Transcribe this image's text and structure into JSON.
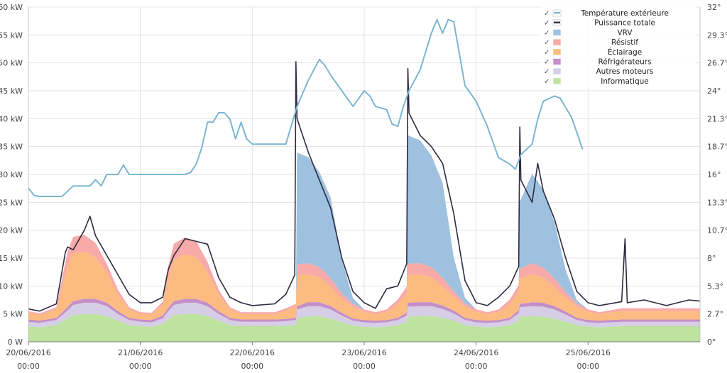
{
  "chart_data": {
    "type": "area",
    "title": "",
    "x_unit": "days since 20/06/2016 00:00",
    "xlim": [
      0,
      6
    ],
    "x_ticks": [
      {
        "value": 0,
        "date": "20/06/2016",
        "time": "00:00"
      },
      {
        "value": 1,
        "date": "21/06/2016",
        "time": "00:00"
      },
      {
        "value": 2,
        "date": "22/06/2016",
        "time": "00:00"
      },
      {
        "value": 3,
        "date": "23/06/2016",
        "time": "00:00"
      },
      {
        "value": 4,
        "date": "24/06/2016",
        "time": "00:00"
      },
      {
        "value": 5,
        "date": "25/06/2016",
        "time": "00:00"
      }
    ],
    "y_left": {
      "unit": "kW",
      "range": [
        0,
        60
      ],
      "ticks": [
        {
          "value": 0,
          "label": "0 W"
        },
        {
          "value": 5,
          "label": "5 kW"
        },
        {
          "value": 10,
          "label": "10 kW"
        },
        {
          "value": 15,
          "label": "15 kW"
        },
        {
          "value": 20,
          "label": "20 kW"
        },
        {
          "value": 25,
          "label": "25 kW"
        },
        {
          "value": 30,
          "label": "30 kW"
        },
        {
          "value": 35,
          "label": "35 kW"
        },
        {
          "value": 40,
          "label": "40 kW"
        },
        {
          "value": 45,
          "label": "45 kW"
        },
        {
          "value": 50,
          "label": "50 kW"
        },
        {
          "value": 55,
          "label": "55 kW"
        },
        {
          "value": 60,
          "label": "60 kW"
        }
      ]
    },
    "y_right": {
      "unit": "°",
      "range": [
        0,
        32
      ],
      "ticks": [
        {
          "value": 0,
          "label": "0°"
        },
        {
          "value": 2.67,
          "label": "2.7°"
        },
        {
          "value": 5.33,
          "label": "5.3°"
        },
        {
          "value": 8,
          "label": "8°"
        },
        {
          "value": 10.67,
          "label": "10.7°"
        },
        {
          "value": 13.33,
          "label": "13.3°"
        },
        {
          "value": 16,
          "label": "16°"
        },
        {
          "value": 18.67,
          "label": "18.7°"
        },
        {
          "value": 21.33,
          "label": "21.3°"
        },
        {
          "value": 24,
          "label": "24°"
        },
        {
          "value": 26.67,
          "label": "26.7°"
        },
        {
          "value": 29.33,
          "label": "29.3°"
        },
        {
          "value": 32,
          "label": "32°"
        }
      ]
    },
    "legend": {
      "placement": "top-right",
      "check": "✓",
      "entries": [
        {
          "name": "Température extérieure",
          "color": "#7cb5d2",
          "kind": "line"
        },
        {
          "name": "Puissance totale",
          "color": "#2e2a40",
          "kind": "line"
        },
        {
          "name": "VRV",
          "color": "#9ec1df",
          "kind": "area"
        },
        {
          "name": "Résistif",
          "color": "#f7aaa8",
          "kind": "area"
        },
        {
          "name": "Éclairage",
          "color": "#fcbb80",
          "kind": "area"
        },
        {
          "name": "Réfrigérateurs",
          "color": "#c48fc8",
          "kind": "area"
        },
        {
          "name": "Autres moteurs",
          "color": "#d6cde6",
          "kind": "area"
        },
        {
          "name": "Informatique",
          "color": "#bde39f",
          "kind": "area"
        }
      ]
    },
    "stack_x": [
      0,
      0.1,
      0.25,
      0.35,
      0.4,
      0.5,
      0.6,
      0.7,
      0.8,
      0.9,
      1.0,
      1.1,
      1.2,
      1.25,
      1.3,
      1.4,
      1.5,
      1.6,
      1.7,
      1.8,
      1.9,
      2.0,
      2.2,
      2.3,
      2.39,
      2.4,
      2.5,
      2.6,
      2.7,
      2.8,
      2.9,
      3.0,
      3.1,
      3.2,
      3.3,
      3.38,
      3.39,
      3.5,
      3.6,
      3.7,
      3.8,
      3.9,
      4.0,
      4.1,
      4.2,
      4.3,
      4.35,
      4.38,
      4.39,
      4.5,
      4.6,
      4.7,
      4.8,
      4.9,
      5.0,
      5.1,
      5.3,
      5.5,
      5.7,
      5.9,
      6.0
    ],
    "series": [
      {
        "name": "Informatique",
        "values": [
          2.8,
          2.6,
          3.0,
          4.2,
          4.8,
          5.0,
          5.0,
          4.6,
          3.8,
          3.0,
          2.8,
          2.7,
          3.2,
          4.0,
          4.8,
          5.0,
          5.0,
          4.6,
          3.8,
          3.0,
          2.8,
          2.8,
          2.8,
          2.9,
          3.0,
          4.2,
          4.6,
          4.6,
          4.2,
          3.5,
          2.9,
          2.7,
          2.6,
          2.7,
          3.0,
          3.5,
          4.5,
          4.6,
          4.6,
          4.3,
          3.8,
          3.0,
          2.7,
          2.6,
          2.7,
          3.0,
          3.5,
          3.8,
          4.5,
          4.6,
          4.5,
          4.2,
          3.6,
          3.0,
          2.7,
          2.6,
          2.8,
          2.8,
          2.8,
          2.8,
          2.8
        ]
      },
      {
        "name": "Autres moteurs",
        "values": [
          0.8,
          0.8,
          0.9,
          1.4,
          1.8,
          2.0,
          2.0,
          1.8,
          1.2,
          0.9,
          0.8,
          0.8,
          1.0,
          1.5,
          1.8,
          2.0,
          2.0,
          1.8,
          1.2,
          0.9,
          0.8,
          0.8,
          0.8,
          0.8,
          0.9,
          1.6,
          1.8,
          1.8,
          1.6,
          1.2,
          0.9,
          0.8,
          0.8,
          0.8,
          0.9,
          1.2,
          1.8,
          1.8,
          1.8,
          1.6,
          1.3,
          0.9,
          0.8,
          0.8,
          0.8,
          0.9,
          1.2,
          1.3,
          1.7,
          1.8,
          1.8,
          1.6,
          1.3,
          0.9,
          0.8,
          0.8,
          0.8,
          0.8,
          0.8,
          0.8,
          0.8
        ]
      },
      {
        "name": "Réfrigérateurs",
        "values": [
          0.4,
          0.4,
          0.4,
          0.6,
          0.7,
          0.7,
          0.7,
          0.6,
          0.5,
          0.4,
          0.4,
          0.4,
          0.5,
          0.6,
          0.7,
          0.7,
          0.7,
          0.6,
          0.5,
          0.4,
          0.4,
          0.4,
          0.4,
          0.4,
          0.4,
          0.6,
          0.7,
          0.7,
          0.6,
          0.5,
          0.4,
          0.4,
          0.4,
          0.4,
          0.4,
          0.5,
          0.7,
          0.7,
          0.7,
          0.6,
          0.5,
          0.4,
          0.4,
          0.4,
          0.4,
          0.4,
          0.5,
          0.5,
          0.6,
          0.7,
          0.7,
          0.6,
          0.5,
          0.4,
          0.4,
          0.4,
          0.4,
          0.4,
          0.4,
          0.4,
          0.4
        ]
      },
      {
        "name": "Éclairage",
        "values": [
          1.2,
          1.0,
          1.5,
          7.5,
          8.5,
          8.5,
          7.5,
          5.5,
          3.0,
          1.5,
          1.0,
          1.0,
          2.0,
          5.5,
          7.5,
          8.0,
          7.5,
          5.5,
          3.0,
          1.5,
          1.0,
          1.0,
          1.0,
          1.5,
          2.0,
          5.5,
          5.0,
          4.5,
          3.5,
          2.5,
          2.0,
          1.5,
          1.2,
          1.5,
          2.5,
          3.5,
          5.0,
          5.0,
          4.5,
          3.5,
          2.5,
          2.0,
          1.5,
          1.2,
          1.5,
          2.5,
          3.0,
          3.5,
          4.5,
          5.0,
          4.5,
          3.5,
          2.5,
          2.0,
          1.5,
          1.2,
          1.5,
          1.5,
          1.5,
          1.5,
          1.5
        ]
      },
      {
        "name": "Résistif",
        "values": [
          0.3,
          0.3,
          0.4,
          2.5,
          3.0,
          3.0,
          2.5,
          1.5,
          0.8,
          0.4,
          0.3,
          0.3,
          0.5,
          2.0,
          2.8,
          3.0,
          2.8,
          1.8,
          0.8,
          0.4,
          0.3,
          0.3,
          0.3,
          0.4,
          0.5,
          2.0,
          2.0,
          1.8,
          1.5,
          1.0,
          0.6,
          0.4,
          0.3,
          0.4,
          0.8,
          1.2,
          2.0,
          2.0,
          1.8,
          1.5,
          1.0,
          0.6,
          0.4,
          0.3,
          0.4,
          0.8,
          1.0,
          1.2,
          1.8,
          2.0,
          1.8,
          1.5,
          1.0,
          0.6,
          0.4,
          0.3,
          0.5,
          0.5,
          0.5,
          0.5,
          0.5
        ]
      },
      {
        "name": "VRV",
        "values": [
          0,
          0,
          0,
          0,
          0,
          0,
          0,
          0,
          0,
          0,
          0,
          0,
          0,
          0,
          0,
          0,
          0,
          0,
          0,
          0,
          0,
          0,
          0,
          0,
          0,
          20.0,
          19.0,
          17.0,
          14.5,
          6.0,
          1.0,
          0,
          0,
          0,
          0,
          0,
          23.0,
          22.0,
          20.0,
          17.0,
          6.0,
          1.0,
          0,
          0,
          0,
          0,
          0,
          0,
          12.0,
          16.0,
          14.0,
          10.0,
          4.0,
          0.5,
          0,
          0,
          0,
          0,
          0,
          0,
          0
        ]
      },
      {
        "name": "Puissance totale",
        "points": [
          [
            0,
            5.9
          ],
          [
            0.1,
            5.5
          ],
          [
            0.25,
            6.8
          ],
          [
            0.33,
            16.0
          ],
          [
            0.35,
            17.0
          ],
          [
            0.4,
            16.5
          ],
          [
            0.5,
            20.0
          ],
          [
            0.55,
            22.5
          ],
          [
            0.6,
            19.0
          ],
          [
            0.7,
            15.5
          ],
          [
            0.8,
            12.0
          ],
          [
            0.9,
            8.5
          ],
          [
            1.0,
            7.0
          ],
          [
            1.1,
            7.0
          ],
          [
            1.2,
            8.0
          ],
          [
            1.25,
            13.0
          ],
          [
            1.3,
            15.5
          ],
          [
            1.4,
            18.5
          ],
          [
            1.5,
            18.0
          ],
          [
            1.6,
            17.5
          ],
          [
            1.7,
            11.5
          ],
          [
            1.8,
            8.0
          ],
          [
            1.9,
            7.0
          ],
          [
            2.0,
            6.5
          ],
          [
            2.2,
            6.8
          ],
          [
            2.3,
            8.5
          ],
          [
            2.38,
            12.0
          ],
          [
            2.39,
            50.2
          ],
          [
            2.4,
            40.0
          ],
          [
            2.5,
            34.0
          ],
          [
            2.6,
            29.0
          ],
          [
            2.7,
            24.0
          ],
          [
            2.8,
            15.0
          ],
          [
            2.9,
            9.0
          ],
          [
            3.0,
            7.0
          ],
          [
            3.1,
            6.0
          ],
          [
            3.2,
            9.5
          ],
          [
            3.3,
            10.0
          ],
          [
            3.38,
            14.0
          ],
          [
            3.39,
            49.0
          ],
          [
            3.4,
            41.0
          ],
          [
            3.5,
            37.0
          ],
          [
            3.6,
            35.0
          ],
          [
            3.7,
            32.0
          ],
          [
            3.8,
            23.0
          ],
          [
            3.9,
            11.0
          ],
          [
            4.0,
            7.0
          ],
          [
            4.1,
            6.5
          ],
          [
            4.2,
            8.0
          ],
          [
            4.3,
            10.0
          ],
          [
            4.38,
            13.5
          ],
          [
            4.39,
            38.5
          ],
          [
            4.4,
            29.0
          ],
          [
            4.5,
            25.0
          ],
          [
            4.55,
            32.0
          ],
          [
            4.6,
            27.0
          ],
          [
            4.7,
            22.0
          ],
          [
            4.8,
            15.0
          ],
          [
            4.9,
            9.0
          ],
          [
            5.0,
            7.0
          ],
          [
            5.1,
            6.5
          ],
          [
            5.3,
            7.2
          ],
          [
            5.33,
            18.5
          ],
          [
            5.35,
            7.0
          ],
          [
            5.5,
            7.5
          ],
          [
            5.7,
            6.5
          ],
          [
            5.9,
            7.5
          ],
          [
            6.0,
            7.3
          ]
        ]
      },
      {
        "name": "Température extérieure",
        "points": [
          [
            0,
            14.7
          ],
          [
            0.05,
            14.0
          ],
          [
            0.1,
            13.9
          ],
          [
            0.3,
            13.9
          ],
          [
            0.4,
            14.9
          ],
          [
            0.55,
            14.9
          ],
          [
            0.6,
            15.5
          ],
          [
            0.65,
            14.9
          ],
          [
            0.7,
            16.0
          ],
          [
            0.8,
            16.0
          ],
          [
            0.85,
            16.9
          ],
          [
            0.9,
            16.0
          ],
          [
            1.0,
            16.0
          ],
          [
            1.2,
            16.0
          ],
          [
            1.4,
            16.0
          ],
          [
            1.45,
            16.2
          ],
          [
            1.5,
            17.0
          ],
          [
            1.55,
            18.6
          ],
          [
            1.6,
            21.0
          ],
          [
            1.65,
            21.0
          ],
          [
            1.7,
            21.9
          ],
          [
            1.75,
            21.9
          ],
          [
            1.8,
            21.3
          ],
          [
            1.85,
            19.4
          ],
          [
            1.9,
            21.0
          ],
          [
            1.95,
            19.4
          ],
          [
            2.0,
            18.9
          ],
          [
            2.1,
            18.9
          ],
          [
            2.2,
            18.9
          ],
          [
            2.3,
            18.9
          ],
          [
            2.4,
            22.5
          ],
          [
            2.5,
            25.0
          ],
          [
            2.6,
            27.0
          ],
          [
            2.65,
            26.4
          ],
          [
            2.7,
            25.5
          ],
          [
            2.8,
            24.0
          ],
          [
            2.9,
            22.5
          ],
          [
            3.0,
            24.0
          ],
          [
            3.05,
            23.5
          ],
          [
            3.1,
            22.5
          ],
          [
            3.2,
            22.2
          ],
          [
            3.25,
            20.8
          ],
          [
            3.3,
            20.6
          ],
          [
            3.35,
            22.5
          ],
          [
            3.4,
            24.0
          ],
          [
            3.5,
            26.0
          ],
          [
            3.6,
            29.5
          ],
          [
            3.65,
            30.8
          ],
          [
            3.7,
            29.5
          ],
          [
            3.75,
            30.8
          ],
          [
            3.8,
            30.6
          ],
          [
            3.9,
            24.5
          ],
          [
            4.0,
            23.0
          ],
          [
            4.1,
            20.6
          ],
          [
            4.2,
            17.6
          ],
          [
            4.3,
            17.0
          ],
          [
            4.35,
            16.5
          ],
          [
            4.4,
            17.9
          ],
          [
            4.5,
            18.9
          ],
          [
            4.55,
            21.3
          ],
          [
            4.6,
            23.0
          ],
          [
            4.7,
            23.5
          ],
          [
            4.75,
            23.3
          ],
          [
            4.8,
            22.4
          ],
          [
            4.85,
            21.5
          ],
          [
            4.9,
            20.0
          ],
          [
            4.95,
            18.4
          ]
        ]
      }
    ]
  }
}
